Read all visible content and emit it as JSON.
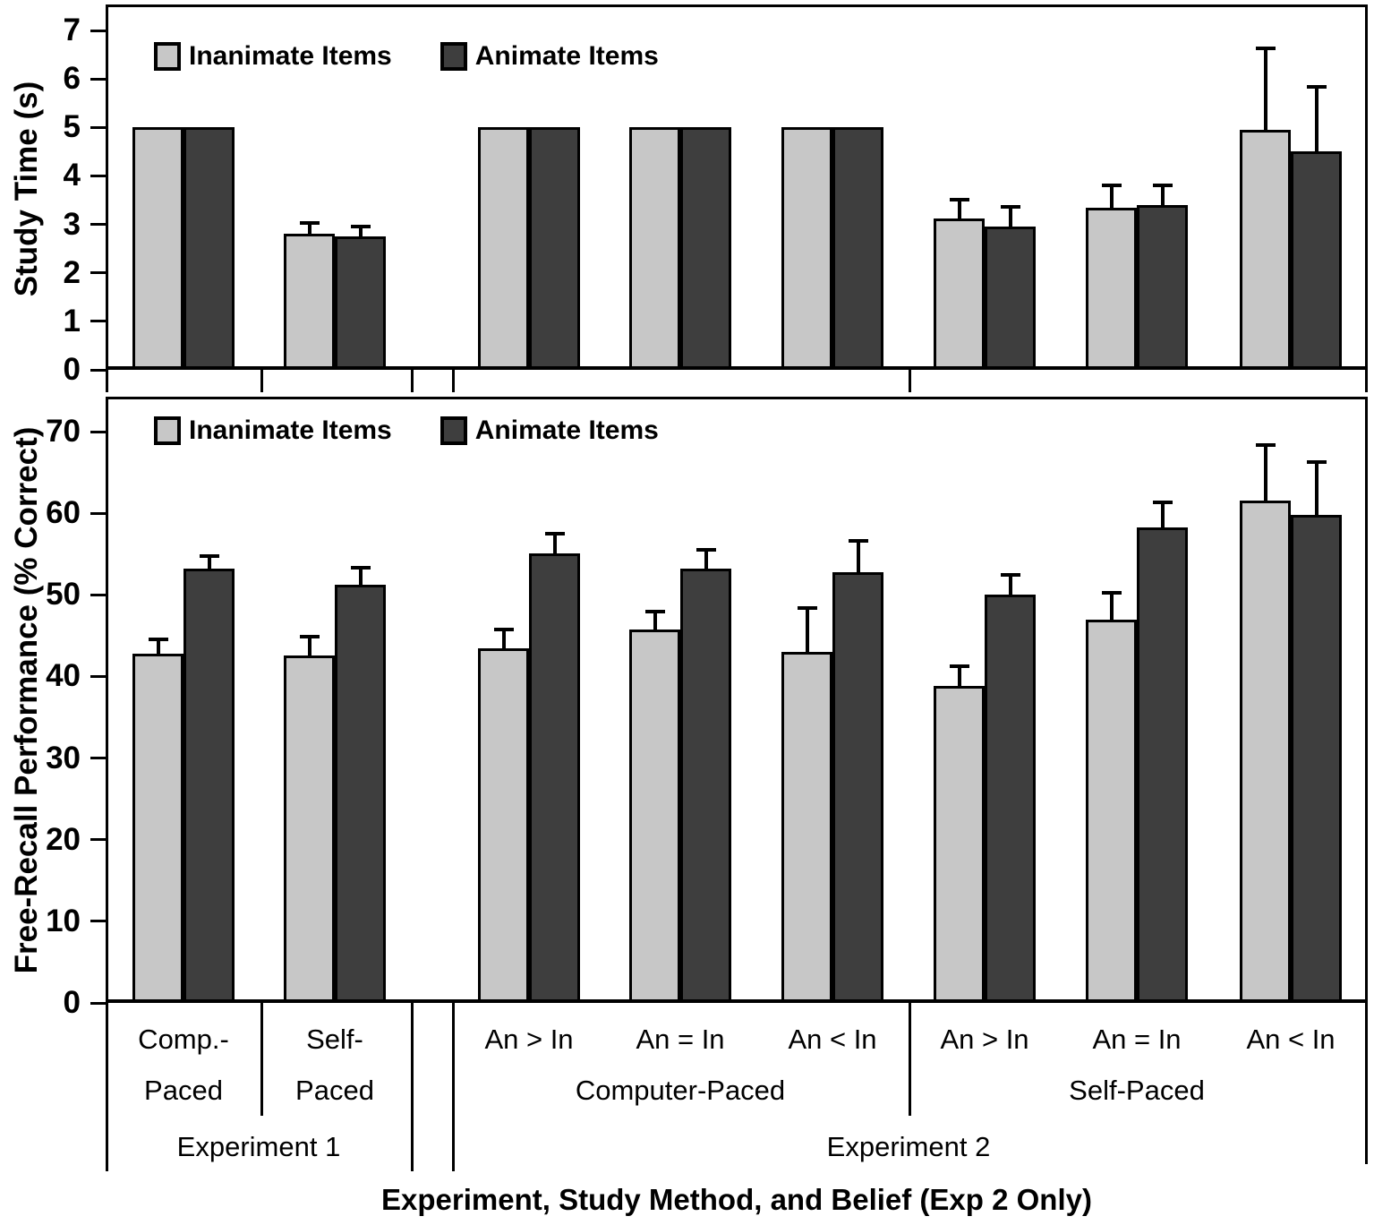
{
  "chart_data": [
    {
      "id": "study_time",
      "type": "bar",
      "title": "",
      "ylabel": "Study Time (s)",
      "xlabel": "",
      "ylim": [
        0,
        7
      ],
      "yticks": [
        0,
        1,
        2,
        3,
        4,
        5,
        6,
        7
      ],
      "grid": false,
      "legend_position": "top-left-inside",
      "error_bars": "upper",
      "categories": [
        "Experiment 1 / Comp.-Paced",
        "Experiment 1 / Self-Paced",
        "Experiment 2 / Computer-Paced / An > In",
        "Experiment 2 / Computer-Paced / An = In",
        "Experiment 2 / Computer-Paced / An < In",
        "Experiment 2 / Self-Paced / An > In",
        "Experiment 2 / Self-Paced / An = In",
        "Experiment 2 / Self-Paced / An < In"
      ],
      "series": [
        {
          "name": "Inanimate Items",
          "color": "#c7c7c7",
          "values": [
            5.0,
            2.8,
            5.0,
            5.0,
            5.0,
            3.13,
            3.35,
            4.95
          ],
          "errors_plus": [
            0,
            0.22,
            0,
            0,
            0,
            0.38,
            0.45,
            1.68
          ]
        },
        {
          "name": "Animate Items",
          "color": "#3e3e3e",
          "values": [
            5.0,
            2.76,
            5.0,
            5.0,
            5.0,
            2.96,
            3.4,
            4.5
          ],
          "errors_plus": [
            0,
            0.2,
            0,
            0,
            0,
            0.4,
            0.4,
            1.33
          ]
        }
      ]
    },
    {
      "id": "free_recall",
      "type": "bar",
      "title": "",
      "ylabel": "Free-Recall Performance (% Correct)",
      "xlabel": "Experiment, Study Method, and Belief (Exp 2 Only)",
      "ylim": [
        0,
        70
      ],
      "yticks": [
        0,
        10,
        20,
        30,
        40,
        50,
        60,
        70
      ],
      "grid": false,
      "legend_position": "top-left-inside",
      "error_bars": "upper",
      "categories": [
        "Experiment 1 / Comp.-Paced",
        "Experiment 1 / Self-Paced",
        "Experiment 2 / Computer-Paced / An > In",
        "Experiment 2 / Computer-Paced / An = In",
        "Experiment 2 / Computer-Paced / An < In",
        "Experiment 2 / Self-Paced / An > In",
        "Experiment 2 / Self-Paced / An = In",
        "Experiment 2 / Self-Paced / An < In"
      ],
      "series": [
        {
          "name": "Inanimate Items",
          "color": "#c7c7c7",
          "values": [
            42.8,
            42.6,
            43.5,
            45.7,
            43.0,
            38.8,
            47.0,
            61.5
          ],
          "errors_plus": [
            1.7,
            2.3,
            2.2,
            2.3,
            5.4,
            2.5,
            3.2,
            6.9
          ]
        },
        {
          "name": "Animate Items",
          "color": "#3e3e3e",
          "values": [
            53.2,
            51.2,
            55.1,
            53.2,
            52.8,
            50.0,
            58.3,
            59.8
          ],
          "errors_plus": [
            1.5,
            2.1,
            2.4,
            2.3,
            3.8,
            2.5,
            3.0,
            6.5
          ]
        }
      ]
    }
  ],
  "legend": {
    "items": [
      {
        "label": "Inanimate Items",
        "color": "#c7c7c7"
      },
      {
        "label": "Animate Items",
        "color": "#3e3e3e"
      }
    ]
  },
  "x_axis": {
    "belief_labels": [
      "An > In",
      "An = In",
      "An < In"
    ],
    "exp1_group_labels": [
      [
        "Comp.-",
        "Paced"
      ],
      [
        "Self-",
        "Paced"
      ]
    ],
    "method_labels": [
      "Computer-Paced",
      "Self-Paced"
    ],
    "experiment_labels": [
      "Experiment 1",
      "Experiment 2"
    ],
    "title": "Experiment, Study Method, and Belief (Exp 2 Only)"
  },
  "colors": {
    "inanimate_fill": "#c7c7c7",
    "animate_fill": "#3e3e3e",
    "bar_border": "#000000",
    "axis": "#000000",
    "background": "#ffffff"
  }
}
